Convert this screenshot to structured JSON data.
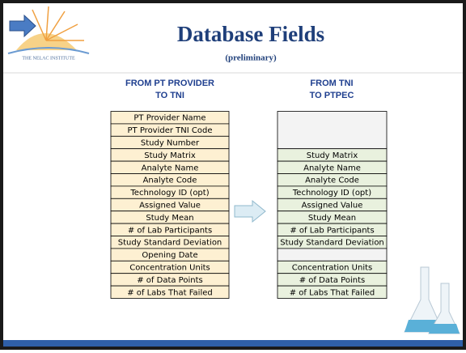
{
  "header": {
    "logo_text": "THE NELAC INSTITUTE",
    "title": "Database Fields",
    "subtitle": "(preliminary)"
  },
  "left": {
    "heading": [
      "FROM PT PROVIDER",
      "TO TNI"
    ],
    "fields": [
      "PT Provider Name",
      "PT Provider TNI Code",
      "Study Number",
      "Study Matrix",
      "Analyte Name",
      "Analyte Code",
      "Technology ID (opt)",
      "Assigned Value",
      "Study Mean",
      "# of Lab Participants",
      "Study Standard Deviation",
      "Opening Date",
      "Concentration Units",
      "# of Data Points",
      "# of Labs That Failed"
    ]
  },
  "right": {
    "heading": [
      "FROM TNI",
      "TO PTPEC"
    ],
    "fields_group_1": [
      "Study Matrix",
      "Analyte Name",
      "Analyte Code",
      "Technology ID (opt)",
      "Assigned Value",
      "Study Mean",
      "# of Lab Participants",
      "Study Standard Deviation"
    ],
    "fields_group_2": [
      "Concentration Units",
      "# of Data Points",
      "# of Labs That Failed"
    ]
  }
}
